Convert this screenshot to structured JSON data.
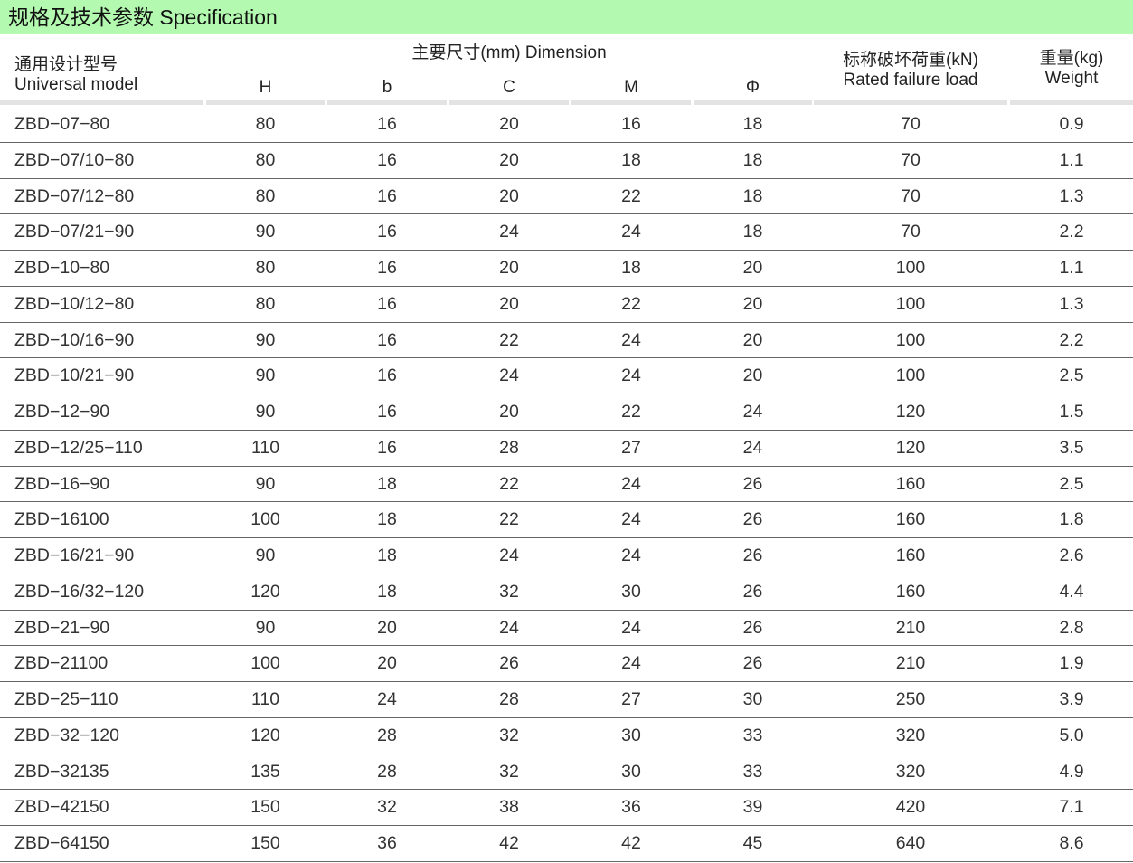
{
  "title": "规格及技术参数  Specification",
  "header": {
    "model_cn": "通用设计型号",
    "model_en": "Universal  model",
    "dimension": "主要尺寸(mm)  Dimension",
    "dims": [
      "H",
      "b",
      "C",
      "M",
      "Φ"
    ],
    "load_cn": "标称破坏荷重(kN)",
    "load_en": "Rated failure load",
    "weight_cn": "重量(kg)",
    "weight_en": "Weight"
  },
  "rows": [
    [
      "ZBD−07−80",
      "80",
      "16",
      "20",
      "16",
      "18",
      "70",
      "0.9"
    ],
    [
      "ZBD−07/10−80",
      "80",
      "16",
      "20",
      "18",
      "18",
      "70",
      "1.1"
    ],
    [
      "ZBD−07/12−80",
      "80",
      "16",
      "20",
      "22",
      "18",
      "70",
      "1.3"
    ],
    [
      "ZBD−07/21−90",
      "90",
      "16",
      "24",
      "24",
      "18",
      "70",
      "2.2"
    ],
    [
      "ZBD−10−80",
      "80",
      "16",
      "20",
      "18",
      "20",
      "100",
      "1.1"
    ],
    [
      "ZBD−10/12−80",
      "80",
      "16",
      "20",
      "22",
      "20",
      "100",
      "1.3"
    ],
    [
      "ZBD−10/16−90",
      "90",
      "16",
      "22",
      "24",
      "20",
      "100",
      "2.2"
    ],
    [
      "ZBD−10/21−90",
      "90",
      "16",
      "24",
      "24",
      "20",
      "100",
      "2.5"
    ],
    [
      "ZBD−12−90",
      "90",
      "16",
      "20",
      "22",
      "24",
      "120",
      "1.5"
    ],
    [
      "ZBD−12/25−110",
      "110",
      "16",
      "28",
      "27",
      "24",
      "120",
      "3.5"
    ],
    [
      "ZBD−16−90",
      "90",
      "18",
      "22",
      "24",
      "26",
      "160",
      "2.5"
    ],
    [
      "ZBD−16100",
      "100",
      "18",
      "22",
      "24",
      "26",
      "160",
      "1.8"
    ],
    [
      "ZBD−16/21−90",
      "90",
      "18",
      "24",
      "24",
      "26",
      "160",
      "2.6"
    ],
    [
      "ZBD−16/32−120",
      "120",
      "18",
      "32",
      "30",
      "26",
      "160",
      "4.4"
    ],
    [
      "ZBD−21−90",
      "90",
      "20",
      "24",
      "24",
      "26",
      "210",
      "2.8"
    ],
    [
      "ZBD−21100",
      "100",
      "20",
      "26",
      "24",
      "26",
      "210",
      "1.9"
    ],
    [
      "ZBD−25−110",
      "110",
      "24",
      "28",
      "27",
      "30",
      "250",
      "3.9"
    ],
    [
      "ZBD−32−120",
      "120",
      "28",
      "32",
      "30",
      "33",
      "320",
      "5.0"
    ],
    [
      "ZBD−32135",
      "135",
      "28",
      "32",
      "30",
      "33",
      "320",
      "4.9"
    ],
    [
      "ZBD−42150",
      "150",
      "32",
      "38",
      "36",
      "39",
      "420",
      "7.1"
    ],
    [
      "ZBD−64150",
      "150",
      "36",
      "42",
      "42",
      "45",
      "640",
      "8.6"
    ]
  ]
}
